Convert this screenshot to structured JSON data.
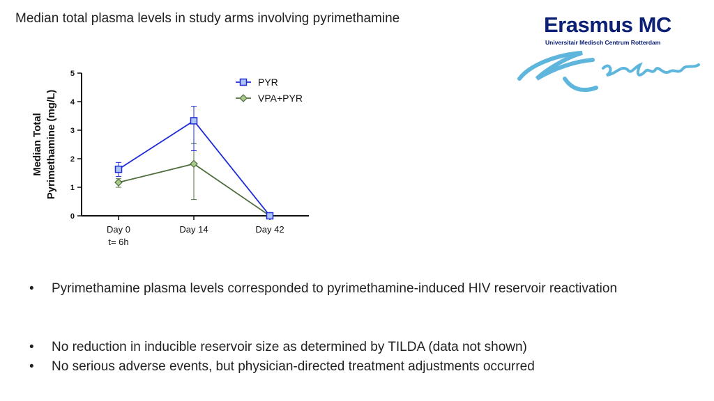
{
  "slide": {
    "title": "Median total plasma levels in study arms involving pyrimethamine"
  },
  "logo": {
    "name": "Erasmus MC",
    "subtitle": "Universitair Medisch Centrum Rotterdam",
    "signature": "Erafmus",
    "color": "#0c2074",
    "signature_color": "#5fb6dd"
  },
  "chart_data": {
    "type": "line",
    "title": "",
    "ylabel_line1": "Median Total",
    "ylabel_line2": "Pyrimethamine (mg/L)",
    "ylim": [
      0,
      5
    ],
    "yticks": [
      "0",
      "1",
      "2",
      "3",
      "4",
      "5"
    ],
    "categories": [
      "Day 0",
      "Day 14",
      "Day 42"
    ],
    "category_sublabels": [
      "t= 6h",
      "",
      ""
    ],
    "grid": false,
    "legend_position": "top-right",
    "series": [
      {
        "name": "PYR",
        "marker": "square",
        "color": "#1f2bd6",
        "values": [
          1.63,
          3.33,
          0.0
        ],
        "error_low": [
          1.38,
          2.28,
          0.0
        ],
        "error_high": [
          1.87,
          3.84,
          0.0
        ]
      },
      {
        "name": "VPA+PYR",
        "marker": "diamond",
        "color": "#4f6e3d",
        "values": [
          1.17,
          1.82,
          0.0
        ],
        "error_low": [
          1.0,
          0.57,
          0.0
        ],
        "error_high": [
          1.3,
          2.53,
          0.0
        ]
      }
    ]
  },
  "bullets": [
    {
      "symbol": "•",
      "text": "Pyrimethamine plasma levels corresponded to pyrimethamine-induced HIV reservoir reactivation"
    },
    {
      "symbol": "•",
      "text": "No reduction in inducible reservoir size as determined by TILDA (data not shown)"
    },
    {
      "symbol": "•",
      "text": "No serious adverse events, but physician-directed treatment adjustments occurred"
    }
  ]
}
